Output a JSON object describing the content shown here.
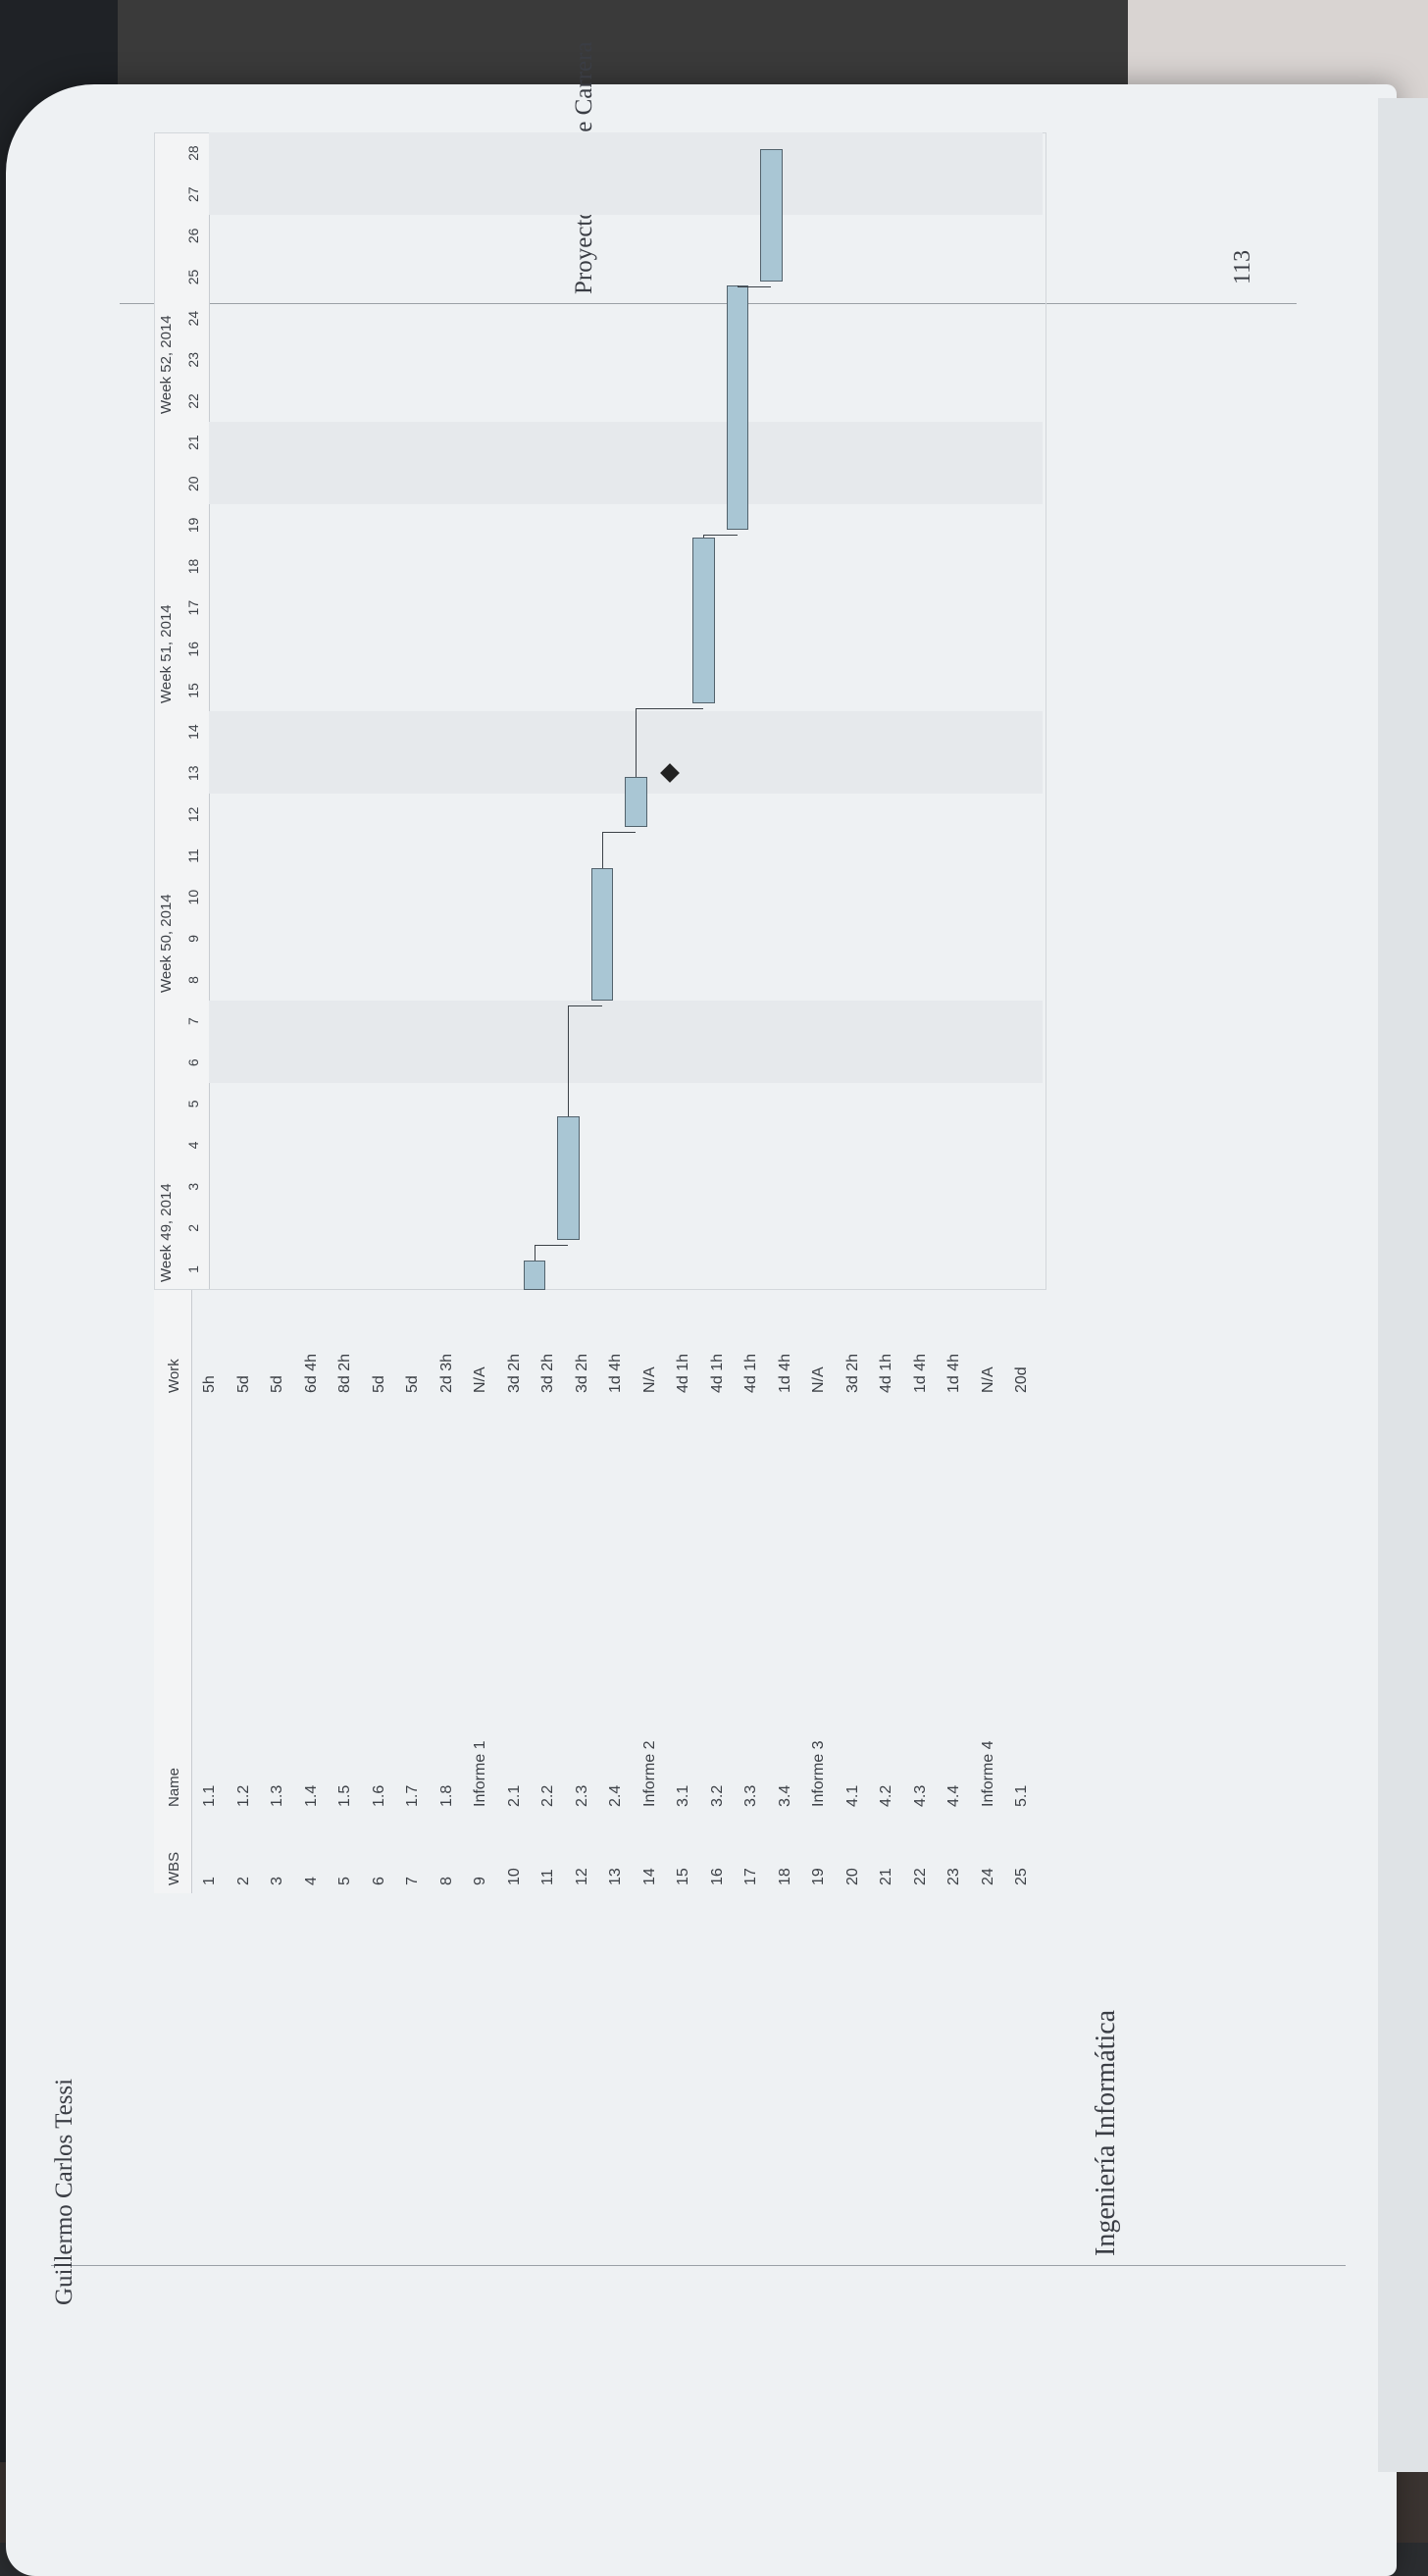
{
  "header": {
    "running_title": "Proyecto Final de Carrera",
    "page_number": "113"
  },
  "footer": {
    "author": "Guillermo Carlos Tessi",
    "school": "Ingeniería Informática"
  },
  "table": {
    "columns": [
      "WBS",
      "Name",
      "Work"
    ],
    "rows": [
      {
        "wbs": "1",
        "name": "1.1",
        "work": "5h"
      },
      {
        "wbs": "2",
        "name": "1.2",
        "work": "5d"
      },
      {
        "wbs": "3",
        "name": "1.3",
        "work": "5d"
      },
      {
        "wbs": "4",
        "name": "1.4",
        "work": "6d 4h"
      },
      {
        "wbs": "5",
        "name": "1.5",
        "work": "8d 2h"
      },
      {
        "wbs": "6",
        "name": "1.6",
        "work": "5d"
      },
      {
        "wbs": "7",
        "name": "1.7",
        "work": "5d"
      },
      {
        "wbs": "8",
        "name": "1.8",
        "work": "2d 3h"
      },
      {
        "wbs": "9",
        "name": "Informe 1",
        "work": "N/A"
      },
      {
        "wbs": "10",
        "name": "2.1",
        "work": "3d 2h"
      },
      {
        "wbs": "11",
        "name": "2.2",
        "work": "3d 2h"
      },
      {
        "wbs": "12",
        "name": "2.3",
        "work": "3d 2h"
      },
      {
        "wbs": "13",
        "name": "2.4",
        "work": "1d 4h"
      },
      {
        "wbs": "14",
        "name": "Informe 2",
        "work": "N/A"
      },
      {
        "wbs": "15",
        "name": "3.1",
        "work": "4d 1h"
      },
      {
        "wbs": "16",
        "name": "3.2",
        "work": "4d 1h"
      },
      {
        "wbs": "17",
        "name": "3.3",
        "work": "4d 1h"
      },
      {
        "wbs": "18",
        "name": "3.4",
        "work": "1d 4h"
      },
      {
        "wbs": "19",
        "name": "Informe 3",
        "work": "N/A"
      },
      {
        "wbs": "20",
        "name": "4.1",
        "work": "3d 2h"
      },
      {
        "wbs": "21",
        "name": "4.2",
        "work": "4d 1h"
      },
      {
        "wbs": "22",
        "name": "4.3",
        "work": "1d 4h"
      },
      {
        "wbs": "23",
        "name": "4.4",
        "work": "1d 4h"
      },
      {
        "wbs": "24",
        "name": "Informe 4",
        "work": "N/A"
      },
      {
        "wbs": "25",
        "name": "5.1",
        "work": "20d"
      }
    ]
  },
  "gantt": {
    "weeks": [
      "Week 49, 2014",
      "Week 50, 2014",
      "Week 51, 2014",
      "Week 52, 2014"
    ],
    "days": [
      "1",
      "2",
      "3",
      "4",
      "5",
      "6",
      "7",
      "8",
      "9",
      "10",
      "11",
      "12",
      "13",
      "14",
      "15",
      "16",
      "17",
      "18",
      "19",
      "20",
      "21",
      "22",
      "23",
      "24",
      "25",
      "26",
      "27",
      "28"
    ],
    "bars": [
      {
        "row": 10,
        "start": 0.0,
        "end": 0.7
      },
      {
        "row": 11,
        "start": 1.2,
        "end": 4.2
      },
      {
        "row": 12,
        "start": 7.0,
        "end": 10.2
      },
      {
        "row": 13,
        "start": 11.2,
        "end": 12.4
      },
      {
        "row": 15,
        "start": 14.2,
        "end": 18.2
      },
      {
        "row": 16,
        "start": 18.4,
        "end": 24.3
      },
      {
        "row": 17,
        "start": 24.4,
        "end": 27.6
      }
    ],
    "milestones": [
      {
        "row": 14,
        "at": 12.5
      }
    ]
  }
}
